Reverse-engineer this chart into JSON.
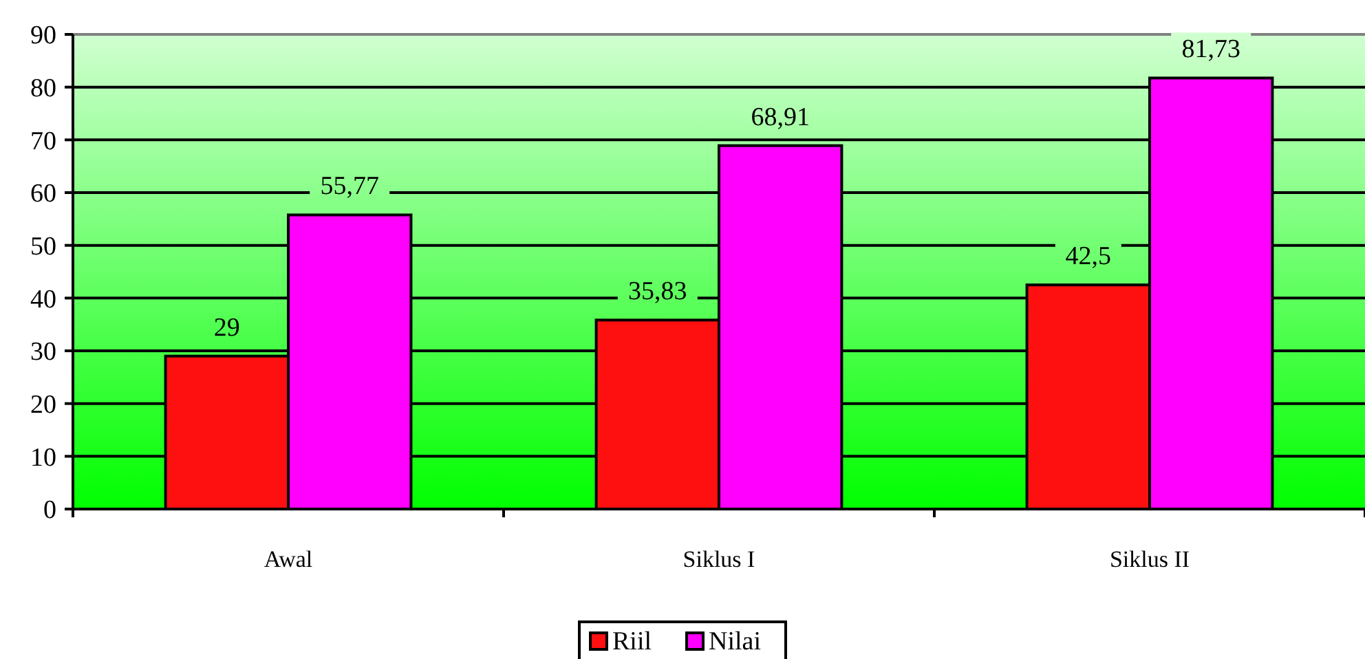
{
  "chart_data": {
    "type": "bar",
    "categories": [
      "Awal",
      "Siklus I",
      "Siklus II"
    ],
    "series": [
      {
        "name": "Riil",
        "color": "#ff1010",
        "values": [
          29,
          35.83,
          42.5
        ],
        "value_labels": [
          "29",
          "35,83",
          "42,5"
        ]
      },
      {
        "name": "Nilai",
        "color": "#ff00ff",
        "values": [
          55.77,
          68.91,
          81.73
        ],
        "value_labels": [
          "55,77",
          "68,91",
          "81,73"
        ]
      }
    ],
    "ylim": [
      0,
      90
    ],
    "yticks": [
      0,
      10,
      20,
      30,
      40,
      50,
      60,
      70,
      80,
      90
    ],
    "grid": "y",
    "legend": "bottom"
  }
}
